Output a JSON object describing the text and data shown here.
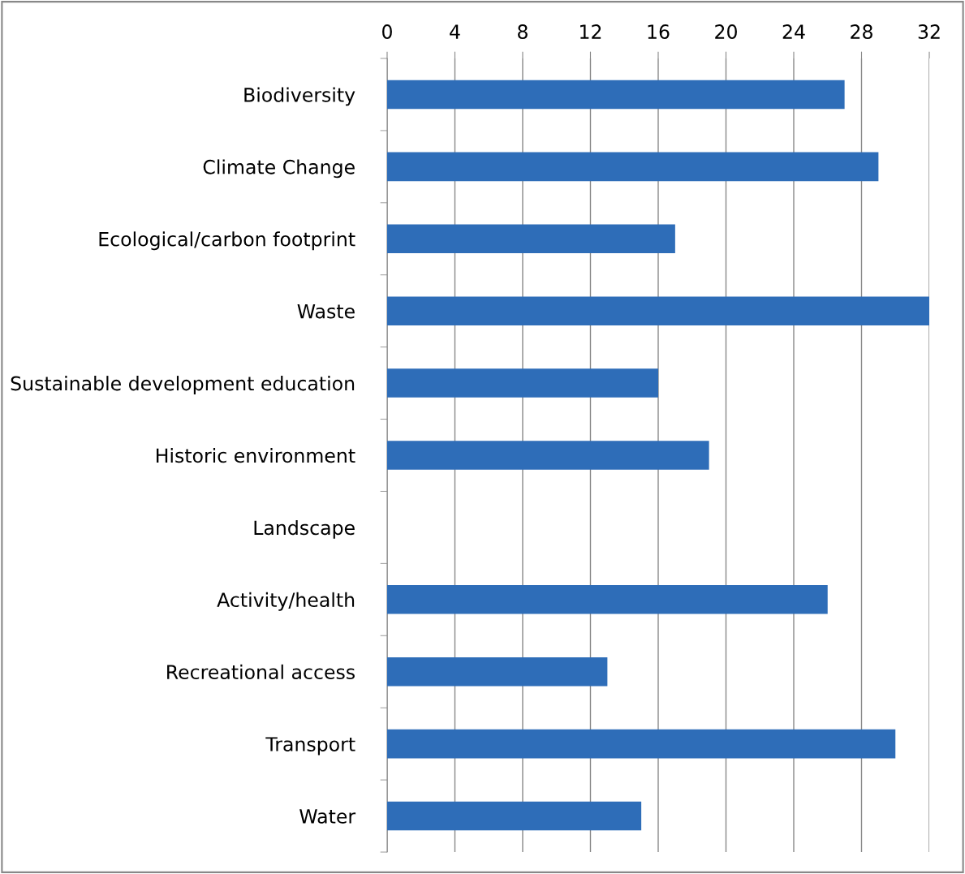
{
  "chart_data": {
    "type": "bar",
    "orientation": "horizontal",
    "categories": [
      "Biodiversity",
      "Climate Change",
      "Ecological/carbon footprint",
      "Waste",
      "Sustainable development education",
      "Historic environment",
      "Landscape",
      "Activity/health",
      "Recreational access",
      "Transport",
      "Water"
    ],
    "values": [
      27,
      29,
      17,
      32,
      16,
      19,
      0,
      26,
      13,
      30,
      15
    ],
    "color": "#2e6db8",
    "xlim": [
      0,
      32
    ],
    "xticks": [
      0,
      4,
      8,
      12,
      16,
      20,
      24,
      28,
      32
    ],
    "grid": "x"
  }
}
